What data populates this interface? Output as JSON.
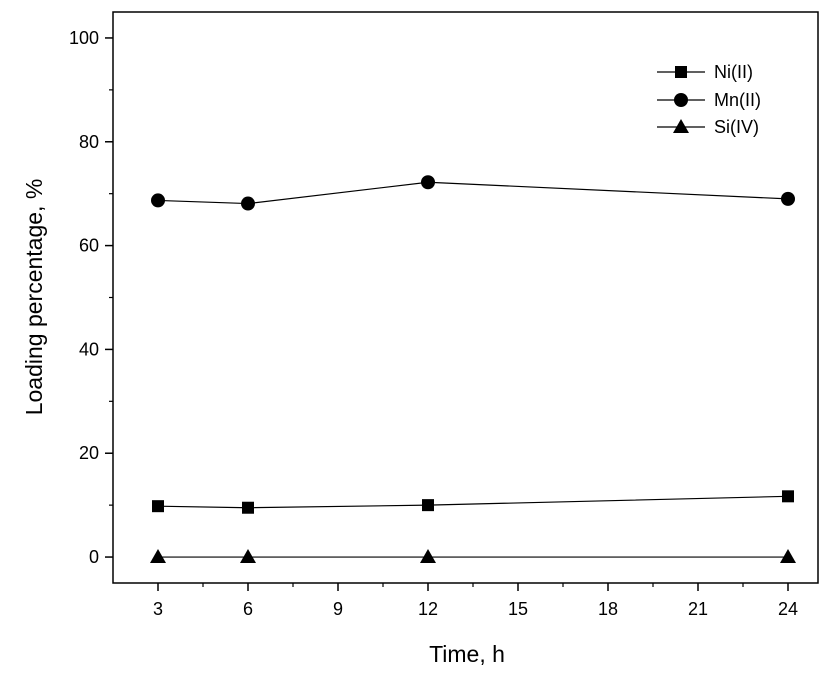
{
  "chart_data": {
    "type": "line",
    "title": "",
    "xlabel": "Time, h",
    "ylabel": "Loading percentage, %",
    "x": [
      3,
      6,
      12,
      24
    ],
    "xlim": [
      1.5,
      25
    ],
    "ylim": [
      -5,
      105
    ],
    "xticks": [
      3,
      6,
      9,
      12,
      15,
      18,
      21,
      24
    ],
    "yticks": [
      0,
      20,
      40,
      60,
      80,
      100
    ],
    "grid": false,
    "legend_position": "top-right",
    "series": [
      {
        "name": "Ni(II)",
        "marker": "square",
        "values": [
          9.8,
          9.5,
          10.0,
          11.7
        ]
      },
      {
        "name": "Mn(II)",
        "marker": "circle",
        "values": [
          68.7,
          68.1,
          72.2,
          69.0
        ]
      },
      {
        "name": "Si(IV)",
        "marker": "triangle",
        "values": [
          0.0,
          0.0,
          0.0,
          0.0
        ]
      }
    ],
    "colors": {
      "line": "#000000",
      "marker": "#000000",
      "background": "#ffffff"
    }
  }
}
